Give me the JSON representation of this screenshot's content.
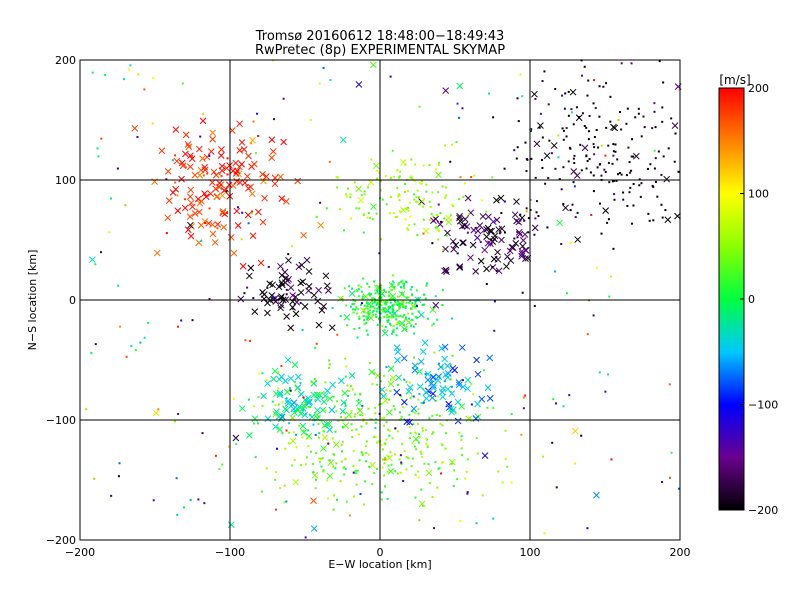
{
  "chart_data": {
    "type": "scatter",
    "title": "Tromsø 20160612 18:48:00−18:49:43",
    "subtitle": "RwPretec (8p) EXPERIMENTAL SKYMAP",
    "xlabel": "E−W location [km]",
    "ylabel": "N−S location [km]",
    "xlim": [
      -200,
      200
    ],
    "ylim": [
      -200,
      200
    ],
    "xticks": [
      -200,
      -100,
      0,
      100,
      200
    ],
    "yticks": [
      -200,
      -100,
      0,
      100,
      200
    ],
    "grid": true,
    "colorbar": {
      "label": "[m/s]",
      "range": [
        -200,
        200
      ],
      "ticks": [
        200,
        100,
        0,
        -100,
        -200
      ],
      "colormap": "rainbow (black → purple → blue → cyan → green → yellow → red)"
    },
    "markers": {
      "small": "dot",
      "large": "cross"
    },
    "clusters": [
      {
        "region": "north-west",
        "center": [
          -105,
          95
        ],
        "spread": [
          30,
          35
        ],
        "velocity": 185,
        "marker": "cross",
        "count": 150
      },
      {
        "region": "north-east",
        "center": [
          150,
          120
        ],
        "spread": [
          45,
          45
        ],
        "velocity": -200,
        "marker": "dot",
        "count": 220
      },
      {
        "region": "east",
        "center": [
          75,
          50
        ],
        "spread": [
          30,
          25
        ],
        "velocity": -175,
        "marker": "cross",
        "count": 110
      },
      {
        "region": "central",
        "center": [
          5,
          -5
        ],
        "spread": [
          20,
          15
        ],
        "velocity": 10,
        "marker": "dot",
        "count": 320
      },
      {
        "region": "central-north",
        "center": [
          20,
          85
        ],
        "spread": [
          35,
          25
        ],
        "velocity": 55,
        "marker": "dot",
        "count": 140
      },
      {
        "region": "south",
        "center": [
          0,
          -110
        ],
        "spread": [
          55,
          45
        ],
        "velocity": 40,
        "marker": "dot",
        "count": 380
      },
      {
        "region": "south-west",
        "center": [
          -55,
          -85
        ],
        "spread": [
          25,
          20
        ],
        "velocity": -20,
        "marker": "cross",
        "count": 90
      },
      {
        "region": "central-west",
        "center": [
          -60,
          5
        ],
        "spread": [
          22,
          18
        ],
        "velocity": -190,
        "marker": "cross",
        "count": 70
      },
      {
        "region": "south-east",
        "center": [
          35,
          -70
        ],
        "spread": [
          25,
          25
        ],
        "velocity": -60,
        "marker": "cross",
        "count": 80
      },
      {
        "region": "scattered",
        "center": [
          0,
          0
        ],
        "spread": [
          140,
          140
        ],
        "velocity": 0,
        "marker": "dot",
        "count": 250
      }
    ]
  }
}
